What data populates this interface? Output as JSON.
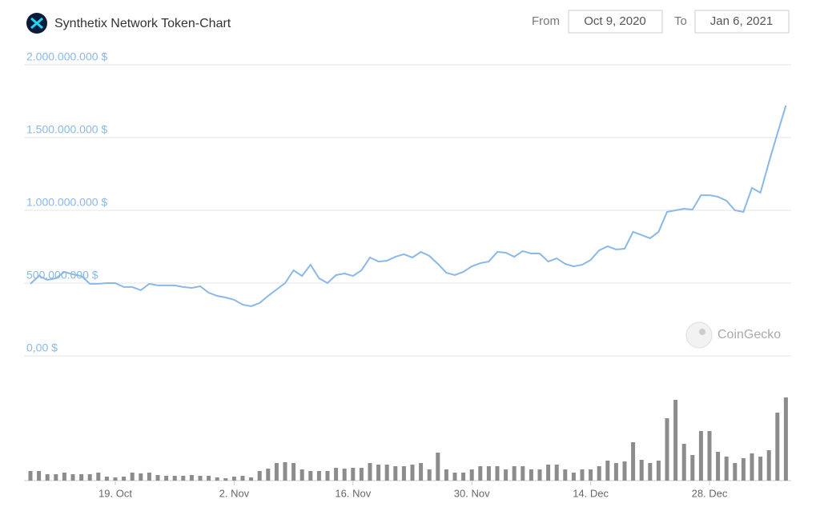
{
  "header": {
    "title": "Synthetix Network Token-Chart",
    "from_label": "From",
    "from_value": "Oct 9, 2020",
    "to_label": "To",
    "to_value": "Jan 6, 2021"
  },
  "chart_data": {
    "type": "line",
    "watermark": "CoinGecko",
    "categories": [
      null,
      null,
      null,
      null,
      null,
      null,
      null,
      null,
      null,
      null,
      "19. Oct",
      null,
      null,
      null,
      null,
      null,
      null,
      null,
      null,
      null,
      null,
      null,
      null,
      null,
      "2. Nov",
      null,
      null,
      null,
      null,
      null,
      null,
      null,
      null,
      null,
      null,
      null,
      null,
      null,
      "16. Nov",
      null,
      null,
      null,
      null,
      null,
      null,
      null,
      null,
      null,
      null,
      null,
      null,
      null,
      "30. Nov",
      null,
      null,
      null,
      null,
      null,
      null,
      null,
      null,
      null,
      null,
      null,
      null,
      null,
      "14. Dec",
      null,
      null,
      null,
      null,
      null,
      null,
      null,
      null,
      null,
      null,
      null,
      null,
      null,
      "28. Dec",
      null,
      null,
      null,
      null,
      null,
      null,
      null,
      null,
      null
    ],
    "ylim": [
      0,
      2000000000
    ],
    "yticks": [
      {
        "value": 0,
        "label": "0,00 $"
      },
      {
        "value": 500000000,
        "label": "500.000.000 $"
      },
      {
        "value": 1000000000,
        "label": "1.000.000.000 $"
      },
      {
        "value": 1500000000,
        "label": "1.500.000.000 $"
      },
      {
        "value": 2000000000,
        "label": "2.000.000.000 $"
      }
    ],
    "y2lim": [
      0,
      110
    ],
    "grid": true,
    "series": [
      {
        "type": "line",
        "color": "#8ab8e8",
        "values": [
          495000000,
          549000000,
          522000000,
          533000000,
          577000000,
          560000000,
          549000000,
          495000000,
          495000000,
          500000000,
          500000000,
          473000000,
          473000000,
          451000000,
          495000000,
          484000000,
          484000000,
          484000000,
          473000000,
          467000000,
          478000000,
          434000000,
          412000000,
          401000000,
          385000000,
          352000000,
          341000000,
          363000000,
          412000000,
          456000000,
          500000000,
          588000000,
          549000000,
          626000000,
          533000000,
          500000000,
          555000000,
          566000000,
          549000000,
          588000000,
          676000000,
          648000000,
          654000000,
          681000000,
          698000000,
          676000000,
          714000000,
          687000000,
          632000000,
          571000000,
          555000000,
          577000000,
          615000000,
          637000000,
          648000000,
          714000000,
          709000000,
          681000000,
          720000000,
          703000000,
          703000000,
          648000000,
          670000000,
          632000000,
          615000000,
          626000000,
          659000000,
          725000000,
          753000000,
          731000000,
          736000000,
          852000000,
          830000000,
          808000000,
          852000000,
          989000000,
          1000000000,
          1011000000,
          1005000000,
          1104000000,
          1104000000,
          1093000000,
          1066000000,
          1000000000,
          989000000,
          1154000000,
          1121000000,
          1330000000,
          1527000000,
          1720000000
        ]
      },
      {
        "type": "bar",
        "axis": "y2",
        "color": "#8c8c8c",
        "values": [
          12,
          12,
          8,
          8,
          10,
          8,
          8,
          8,
          10,
          5,
          4,
          5,
          10,
          9,
          10,
          7,
          6,
          6,
          6,
          7,
          6,
          6,
          4,
          3,
          5,
          6,
          4,
          12,
          15,
          22,
          23,
          22,
          14,
          12,
          12,
          12,
          16,
          15,
          16,
          16,
          22,
          20,
          20,
          18,
          18,
          20,
          22,
          14,
          35,
          14,
          10,
          10,
          14,
          18,
          18,
          18,
          14,
          18,
          18,
          14,
          14,
          20,
          20,
          14,
          10,
          14,
          14,
          18,
          25,
          22,
          24,
          48,
          26,
          22,
          25,
          78,
          101,
          46,
          32,
          62,
          62,
          36,
          30,
          22,
          28,
          34,
          30,
          38,
          85,
          104
        ]
      }
    ]
  }
}
